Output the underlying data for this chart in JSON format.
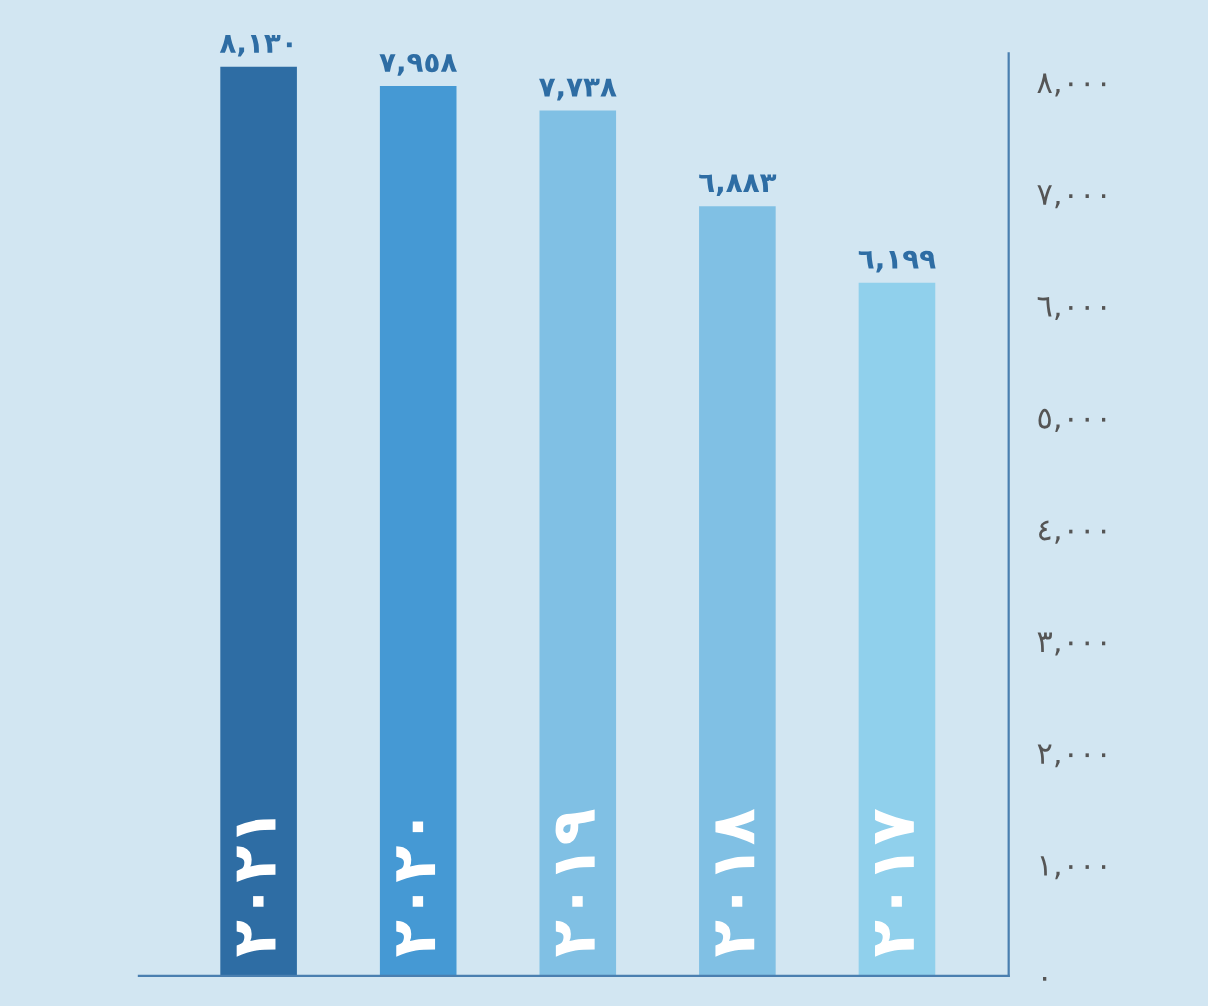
{
  "chart_data": {
    "type": "bar",
    "categories": [
      "٢٠٢١",
      "٢٠٢٠",
      "٢٠١٩",
      "٢٠١٨",
      "٢٠١٧"
    ],
    "values": [
      8130,
      7958,
      7738,
      6883,
      6199
    ],
    "colors": [
      "#2e6da4",
      "#4599d4",
      "#80c0e4",
      "#80c0e4",
      "#90d0ec"
    ],
    "value_labels": [
      "٨,١٣٠",
      "٧,٩٥٨",
      "٧,٧٣٨",
      "٦,٨٨٣",
      "٦,١٩٩"
    ],
    "ylim": [
      0,
      8250
    ],
    "yticks": [
      {
        "value": 0,
        "label": "٠"
      },
      {
        "value": 1000,
        "label": "١,٠٠٠"
      },
      {
        "value": 2000,
        "label": "٢,٠٠٠"
      },
      {
        "value": 3000,
        "label": "٣,٠٠٠"
      },
      {
        "value": 4000,
        "label": "٤,٠٠٠"
      },
      {
        "value": 5000,
        "label": "٥,٠٠٠"
      },
      {
        "value": 6000,
        "label": "٦,٠٠٠"
      },
      {
        "value": 7000,
        "label": "٧,٠٠٠"
      },
      {
        "value": 8000,
        "label": "٨,٠٠٠"
      }
    ],
    "grid": false
  }
}
